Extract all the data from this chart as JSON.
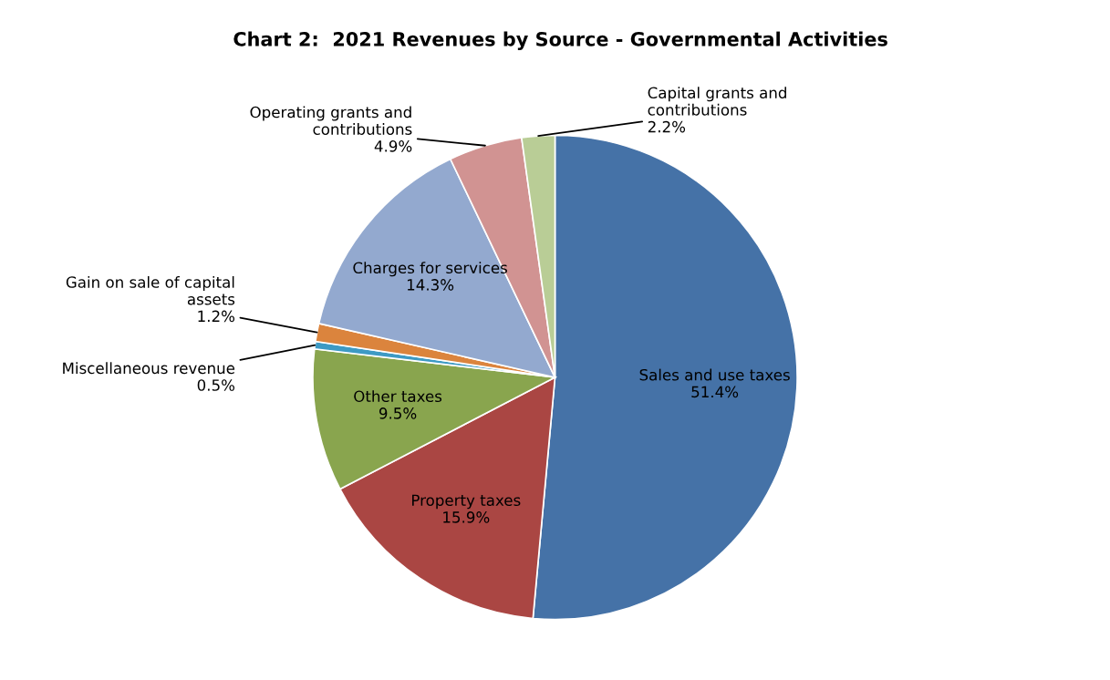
{
  "chart_data": {
    "type": "pie",
    "title": "Chart 2:  2021 Revenues by Source - Governmental Activities",
    "categories": [
      "Sales and use taxes",
      "Property taxes",
      "Other taxes",
      "Miscellaneous revenue",
      "Gain on sale of capital\nassets",
      "Charges for services",
      "Operating grants and\ncontributions",
      "Capital grants and\ncontributions"
    ],
    "values": [
      51.4,
      15.9,
      9.5,
      0.5,
      1.2,
      14.3,
      4.9,
      2.2
    ],
    "colors": [
      "#4572a7",
      "#aa4643",
      "#89a54e",
      "#3d9ac4",
      "#db843d",
      "#93a9cf",
      "#d19392",
      "#b9cd96"
    ],
    "value_labels": [
      "51.4%",
      "15.9%",
      "9.5%",
      "0.5%",
      "1.2%",
      "14.3%",
      "4.9%",
      "2.2%"
    ]
  }
}
